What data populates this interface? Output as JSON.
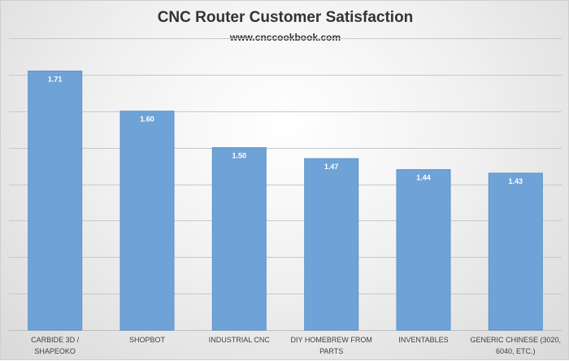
{
  "header": {
    "title": "CNC Router Customer Satisfaction",
    "subtitle": "www.cnccookbook.com"
  },
  "colors": {
    "bar": "#6fa3d8",
    "bar_edge": "#5b92c9",
    "gridline": "#c8c8c8",
    "value_label": "#ffffff"
  },
  "chart_data": {
    "type": "bar",
    "title": "CNC Router Customer Satisfaction",
    "subtitle": "www.cnccookbook.com",
    "xlabel": "",
    "ylabel": "",
    "categories": [
      "CARBIDE 3D / SHAPEOKO",
      "SHOPBOT",
      "INDUSTRIAL CNC",
      "DIY HOMEBREW FROM PARTS",
      "INVENTABLES",
      "GENERIC CHINESE (3020, 6040, ETC.)"
    ],
    "values": [
      1.71,
      1.6,
      1.5,
      1.47,
      1.44,
      1.43
    ],
    "value_labels": [
      "1.71",
      "1.60",
      "1.50",
      "1.47",
      "1.44",
      "1.43"
    ],
    "ylim": [
      1.0,
      1.8
    ],
    "gridlines": true,
    "y_tick_labels_shown": false,
    "legend": "none"
  }
}
